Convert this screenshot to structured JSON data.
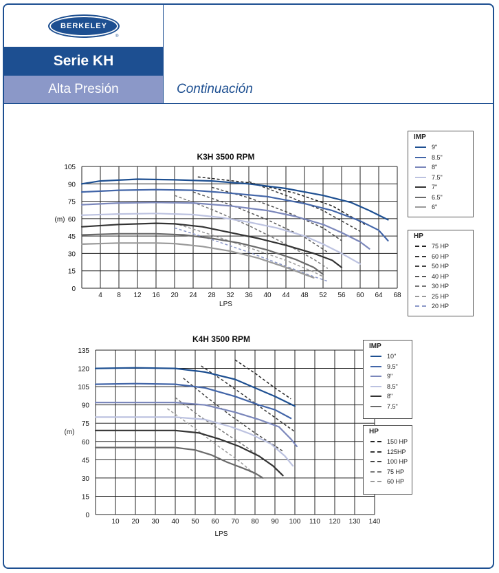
{
  "header": {
    "brand": "BERKELEY",
    "series": "Serie KH",
    "subtitle": "Alta Presión",
    "continuation": "Continuación"
  },
  "chart_data": [
    {
      "type": "line",
      "title": "K3H 3500 RPM",
      "xlabel": "LPS",
      "ylabel": "(m)",
      "xlim": [
        0,
        68
      ],
      "ylim": [
        0,
        105
      ],
      "xticks": [
        4,
        8,
        12,
        16,
        20,
        24,
        28,
        32,
        36,
        40,
        44,
        48,
        52,
        56,
        60,
        64,
        68
      ],
      "yticks": [
        0,
        15,
        30,
        45,
        60,
        75,
        90,
        105
      ],
      "legend_imp_title": "IMP",
      "legend_hp_title": "HP",
      "series": [
        {
          "name": "9\"",
          "color": "#1d4f91",
          "width": 2.2,
          "points": [
            [
              0,
              90
            ],
            [
              4,
              92.5
            ],
            [
              12,
              94
            ],
            [
              20,
              93.5
            ],
            [
              28,
              92.5
            ],
            [
              36,
              90
            ],
            [
              44,
              86
            ],
            [
              52,
              80
            ],
            [
              58,
              74
            ],
            [
              62,
              67
            ],
            [
              66,
              59
            ]
          ]
        },
        {
          "name": "8.5\"",
          "color": "#4265a8",
          "width": 2.2,
          "points": [
            [
              0,
              83
            ],
            [
              8,
              84.5
            ],
            [
              16,
              85
            ],
            [
              24,
              84.5
            ],
            [
              32,
              82
            ],
            [
              40,
              79
            ],
            [
              48,
              73
            ],
            [
              54,
              67
            ],
            [
              60,
              58
            ],
            [
              64,
              50
            ],
            [
              66,
              41
            ]
          ]
        },
        {
          "name": "8\"",
          "color": "#7b87bb",
          "width": 2.2,
          "points": [
            [
              0,
              72
            ],
            [
              8,
              73.5
            ],
            [
              16,
              74
            ],
            [
              24,
              73.5
            ],
            [
              32,
              71
            ],
            [
              40,
              67
            ],
            [
              46,
              62
            ],
            [
              52,
              55
            ],
            [
              56,
              48
            ],
            [
              60,
              40
            ],
            [
              62,
              34
            ]
          ]
        },
        {
          "name": "7.5\"",
          "color": "#bcc2e0",
          "width": 2.2,
          "points": [
            [
              0,
              63
            ],
            [
              8,
              64
            ],
            [
              16,
              64.5
            ],
            [
              24,
              63.5
            ],
            [
              30,
              61
            ],
            [
              36,
              57
            ],
            [
              42,
              52
            ],
            [
              48,
              45
            ],
            [
              52,
              38
            ],
            [
              56,
              30
            ],
            [
              60,
              21
            ]
          ]
        },
        {
          "name": "7\"",
          "color": "#333333",
          "width": 2.2,
          "points": [
            [
              0,
              53
            ],
            [
              8,
              55
            ],
            [
              16,
              56
            ],
            [
              20,
              55.5
            ],
            [
              26,
              53
            ],
            [
              32,
              48
            ],
            [
              38,
              43
            ],
            [
              44,
              37
            ],
            [
              50,
              30
            ],
            [
              54,
              24
            ],
            [
              56,
              18
            ]
          ]
        },
        {
          "name": "6.5\"",
          "color": "#6a6a6a",
          "width": 2.2,
          "points": [
            [
              0,
              46
            ],
            [
              8,
              47
            ],
            [
              16,
              47
            ],
            [
              22,
              46
            ],
            [
              28,
              43
            ],
            [
              34,
              39
            ],
            [
              40,
              33
            ],
            [
              46,
              25
            ],
            [
              50,
              18
            ],
            [
              52,
              12
            ]
          ]
        },
        {
          "name": "6\"",
          "color": "#9a9a9a",
          "width": 2.2,
          "points": [
            [
              0,
              38
            ],
            [
              8,
              39
            ],
            [
              16,
              39
            ],
            [
              20,
              38.5
            ],
            [
              26,
              36
            ],
            [
              32,
              32
            ],
            [
              38,
              26
            ],
            [
              44,
              18
            ],
            [
              48,
              12
            ],
            [
              50,
              9
            ]
          ]
        }
      ],
      "hp_series": [
        {
          "name": "75 HP",
          "color": "#222222",
          "points": [
            [
              25,
              96
            ],
            [
              36,
              91
            ],
            [
              46,
              82
            ],
            [
              54,
              71
            ],
            [
              61,
              55
            ]
          ]
        },
        {
          "name": "60 HP",
          "color": "#333333",
          "points": [
            [
              36,
              92
            ],
            [
              44,
              80
            ],
            [
              52,
              67
            ],
            [
              56,
              58
            ],
            [
              60,
              49
            ]
          ]
        },
        {
          "name": "50 HP",
          "color": "#444444",
          "points": [
            [
              28,
              87
            ],
            [
              36,
              78
            ],
            [
              44,
              66
            ],
            [
              52,
              52
            ],
            [
              56,
              41
            ]
          ]
        },
        {
          "name": "40 HP",
          "color": "#555555",
          "points": [
            [
              24,
              83
            ],
            [
              32,
              72
            ],
            [
              40,
              59
            ],
            [
              48,
              44
            ],
            [
              53,
              31
            ]
          ]
        },
        {
          "name": "30 HP",
          "color": "#777777",
          "points": [
            [
              20,
              80
            ],
            [
              28,
              68
            ],
            [
              36,
              54
            ],
            [
              44,
              38
            ],
            [
              50,
              25
            ],
            [
              53,
              17
            ]
          ]
        },
        {
          "name": "25 HP",
          "color": "#999999",
          "points": [
            [
              20,
              56
            ],
            [
              28,
              46
            ],
            [
              36,
              35
            ],
            [
              44,
              24
            ],
            [
              50,
              14
            ],
            [
              52,
              10
            ]
          ]
        },
        {
          "name": "20 HP",
          "color": "#8b98c8",
          "points": [
            [
              20,
              52
            ],
            [
              28,
              42
            ],
            [
              36,
              31
            ],
            [
              44,
              19
            ],
            [
              50,
              10
            ],
            [
              53,
              6
            ]
          ]
        }
      ]
    },
    {
      "type": "line",
      "title": "K4H 3500 RPM",
      "xlabel": "LPS",
      "ylabel": "(m)",
      "xlim": [
        0,
        140
      ],
      "ylim": [
        0,
        135
      ],
      "xticks": [
        10,
        20,
        30,
        40,
        50,
        60,
        70,
        80,
        90,
        100,
        110,
        120,
        130,
        140
      ],
      "yticks": [
        0,
        15,
        30,
        45,
        60,
        75,
        90,
        105,
        120,
        135
      ],
      "legend_imp_title": "IMP",
      "legend_hp_title": "HP",
      "series": [
        {
          "name": "10\"",
          "color": "#1d4f91",
          "width": 2.2,
          "points": [
            [
              0,
              120
            ],
            [
              20,
              120.5
            ],
            [
              40,
              120
            ],
            [
              55,
              117
            ],
            [
              70,
              111
            ],
            [
              80,
              104
            ],
            [
              90,
              97
            ],
            [
              100,
              89
            ]
          ]
        },
        {
          "name": "9.5\"",
          "color": "#4265a8",
          "width": 2.2,
          "points": [
            [
              0,
              107
            ],
            [
              20,
              107.5
            ],
            [
              40,
              107
            ],
            [
              55,
              104
            ],
            [
              70,
              97
            ],
            [
              82,
              90
            ],
            [
              90,
              86
            ],
            [
              98,
              79
            ]
          ]
        },
        {
          "name": "9\"",
          "color": "#7b87bb",
          "width": 2.2,
          "points": [
            [
              0,
              92
            ],
            [
              20,
              92
            ],
            [
              40,
              92
            ],
            [
              55,
              90
            ],
            [
              70,
              84
            ],
            [
              82,
              78
            ],
            [
              92,
              72
            ],
            [
              98,
              62
            ],
            [
              101,
              56
            ]
          ]
        },
        {
          "name": "8.5\"",
          "color": "#bcc2e0",
          "width": 2.2,
          "points": [
            [
              0,
              80
            ],
            [
              20,
              80
            ],
            [
              40,
              80
            ],
            [
              55,
              78
            ],
            [
              68,
              72
            ],
            [
              78,
              66
            ],
            [
              88,
              58
            ],
            [
              95,
              48
            ],
            [
              99,
              40
            ]
          ]
        },
        {
          "name": "8\"",
          "color": "#333333",
          "width": 2.2,
          "points": [
            [
              0,
              69
            ],
            [
              20,
              69
            ],
            [
              40,
              69
            ],
            [
              52,
              67
            ],
            [
              62,
              62
            ],
            [
              72,
              56
            ],
            [
              82,
              48
            ],
            [
              89,
              40
            ],
            [
              94,
              32
            ]
          ]
        },
        {
          "name": "7.5\"",
          "color": "#6a6a6a",
          "width": 2.2,
          "points": [
            [
              0,
              55
            ],
            [
              20,
              55
            ],
            [
              40,
              55
            ],
            [
              50,
              53
            ],
            [
              58,
              49
            ],
            [
              66,
              43
            ],
            [
              74,
              38
            ],
            [
              80,
              34
            ],
            [
              84,
              30
            ]
          ]
        }
      ],
      "hp_series": [
        {
          "name": "150 HP",
          "color": "#222222",
          "points": [
            [
              70,
              127
            ],
            [
              80,
              116
            ],
            [
              90,
              104
            ],
            [
              98,
              95
            ]
          ]
        },
        {
          "name": "125HP",
          "color": "#333333",
          "points": [
            [
              53,
              122
            ],
            [
              64,
              110
            ],
            [
              76,
              96
            ],
            [
              88,
              82
            ],
            [
              100,
              68
            ]
          ]
        },
        {
          "name": "100 HP",
          "color": "#444444",
          "points": [
            [
              44,
              112
            ],
            [
              56,
              96
            ],
            [
              68,
              81
            ],
            [
              80,
              67
            ],
            [
              94,
              52
            ]
          ]
        },
        {
          "name": "75 HP",
          "color": "#777777",
          "points": [
            [
              40,
              96
            ],
            [
              52,
              81
            ],
            [
              64,
              68
            ],
            [
              76,
              55
            ],
            [
              88,
              41
            ]
          ]
        },
        {
          "name": "60 HP",
          "color": "#999999",
          "points": [
            [
              36,
              87
            ],
            [
              48,
              73
            ],
            [
              60,
              58
            ],
            [
              72,
              44
            ],
            [
              80,
              33
            ]
          ]
        }
      ]
    }
  ]
}
